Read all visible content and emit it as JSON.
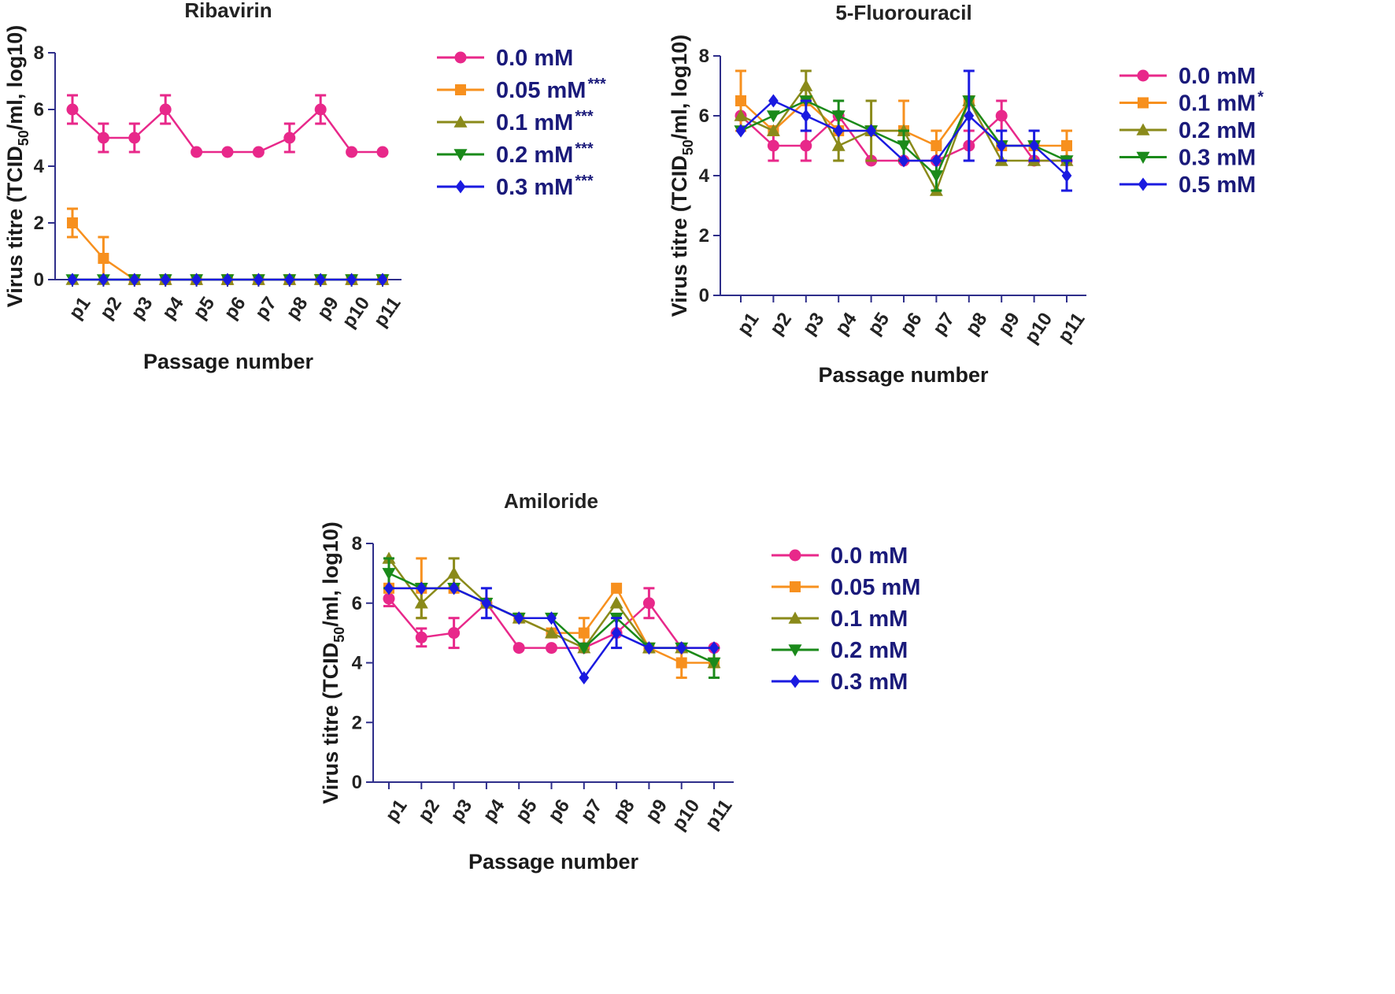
{
  "chart_data": [
    {
      "type": "line",
      "title": "Ribavirin",
      "xlabel": "Passage number",
      "ylabel": "Virus titre (TCID50/ml, log10)",
      "ylabel_parts": {
        "pre": "Virus titre (TCID",
        "sub": "50",
        "post": "/ml, log10)"
      },
      "ylim": [
        0,
        8
      ],
      "yticks": [
        "0",
        "2",
        "4",
        "6",
        "8"
      ],
      "categories": [
        "p1",
        "p2",
        "p3",
        "p4",
        "p5",
        "p6",
        "p7",
        "p8",
        "p9",
        "p10",
        "p11"
      ],
      "series": [
        {
          "name": "0.0 mM",
          "sig": "",
          "color": "#e8288a",
          "marker": "circle",
          "values": [
            6,
            5,
            5,
            6,
            4.5,
            4.5,
            4.5,
            5,
            6,
            4.5,
            4.5
          ],
          "errors": [
            0.5,
            0.5,
            0.5,
            0.5,
            0,
            0,
            0,
            0.5,
            0.5,
            0,
            0
          ]
        },
        {
          "name": "0.05 mM",
          "sig": "***",
          "color": "#f7901e",
          "marker": "square",
          "values": [
            2,
            0.75,
            0,
            0,
            0,
            0,
            0,
            0,
            0,
            0,
            0
          ],
          "errors": [
            0.5,
            0.75,
            0,
            0,
            0,
            0,
            0,
            0,
            0,
            0,
            0
          ]
        },
        {
          "name": "0.1 mM",
          "sig": "***",
          "color": "#8a8a1a",
          "marker": "triangle-up",
          "values": [
            0,
            0,
            0,
            0,
            0,
            0,
            0,
            0,
            0,
            0,
            0
          ],
          "errors": [
            0,
            0,
            0,
            0,
            0,
            0,
            0,
            0,
            0,
            0,
            0
          ]
        },
        {
          "name": "0.2 mM",
          "sig": "***",
          "color": "#1a8a1a",
          "marker": "triangle-down",
          "values": [
            0,
            0,
            0,
            0,
            0,
            0,
            0,
            0,
            0,
            0,
            0
          ],
          "errors": [
            0,
            0,
            0,
            0,
            0,
            0,
            0,
            0,
            0,
            0,
            0
          ]
        },
        {
          "name": "0.3 mM",
          "sig": "***",
          "color": "#1a1ae0",
          "marker": "diamond",
          "values": [
            0,
            0,
            0,
            0,
            0,
            0,
            0,
            0,
            0,
            0,
            0
          ],
          "errors": [
            0,
            0,
            0,
            0,
            0,
            0,
            0,
            0,
            0,
            0,
            0
          ]
        }
      ]
    },
    {
      "type": "line",
      "title": "5-Fluorouracil",
      "xlabel": "Passage number",
      "ylabel": "Virus titre (TCID50/ml, log10)",
      "ylabel_parts": {
        "pre": "Virus titre (TCID",
        "sub": "50",
        "post": "/ml, log10)"
      },
      "ylim": [
        0,
        8
      ],
      "yticks": [
        "0",
        "2",
        "4",
        "6",
        "8"
      ],
      "categories": [
        "p1",
        "p2",
        "p3",
        "p4",
        "p5",
        "p6",
        "p7",
        "p8",
        "p9",
        "p10",
        "p11"
      ],
      "series": [
        {
          "name": "0.0 mM",
          "sig": "",
          "color": "#e8288a",
          "marker": "circle",
          "values": [
            6,
            5,
            5,
            6,
            4.5,
            4.5,
            4.5,
            5,
            6,
            4.5,
            4.5
          ],
          "errors": [
            0,
            0.5,
            0.5,
            0,
            0,
            0,
            0,
            0.5,
            0.5,
            0,
            0
          ]
        },
        {
          "name": "0.1 mM",
          "sig": "*",
          "color": "#f7901e",
          "marker": "square",
          "values": [
            6.5,
            5.5,
            6.5,
            5.5,
            5.5,
            5.5,
            5,
            6.5,
            5,
            5,
            5
          ],
          "errors": [
            1,
            0,
            0,
            0,
            0,
            1,
            0.5,
            0,
            0,
            0,
            0.5
          ]
        },
        {
          "name": "0.2 mM",
          "sig": "",
          "color": "#8a8a1a",
          "marker": "triangle-up",
          "values": [
            6,
            5.5,
            7,
            5,
            5.5,
            5.5,
            3.5,
            6.5,
            4.5,
            4.5,
            4.5
          ],
          "errors": [
            0,
            0,
            0.5,
            0.5,
            1,
            0,
            0,
            0,
            0,
            0,
            0
          ]
        },
        {
          "name": "0.3 mM",
          "sig": "",
          "color": "#1a8a1a",
          "marker": "triangle-down",
          "values": [
            5.5,
            6,
            6.5,
            6,
            5.5,
            5,
            4,
            6.5,
            5,
            5,
            4.5
          ],
          "errors": [
            0,
            0,
            0,
            0.5,
            0,
            0.5,
            0.5,
            0,
            0,
            0,
            0
          ]
        },
        {
          "name": "0.5 mM",
          "sig": "",
          "color": "#1a1ae0",
          "marker": "diamond",
          "values": [
            5.5,
            6.5,
            6,
            5.5,
            5.5,
            4.5,
            4.5,
            6,
            5,
            5,
            4
          ],
          "errors": [
            0,
            0,
            0.5,
            0,
            0,
            0,
            0,
            1.5,
            0.5,
            0.5,
            0.5
          ]
        }
      ]
    },
    {
      "type": "line",
      "title": "Amiloride",
      "xlabel": "Passage number",
      "ylabel": "Virus titre (TCID50/ml, log10)",
      "ylabel_parts": {
        "pre": "Virus titre (TCID",
        "sub": "50",
        "post": "/ml, log10)"
      },
      "ylim": [
        0,
        8
      ],
      "yticks": [
        "0",
        "2",
        "4",
        "6",
        "8"
      ],
      "categories": [
        "p1",
        "p2",
        "p3",
        "p4",
        "p5",
        "p6",
        "p7",
        "p8",
        "p9",
        "p10",
        "p11"
      ],
      "series": [
        {
          "name": "0.0 mM",
          "sig": "",
          "color": "#e8288a",
          "marker": "circle",
          "values": [
            6.15,
            4.85,
            5,
            6,
            4.5,
            4.5,
            4.5,
            5,
            6,
            4.5,
            4.5
          ],
          "errors": [
            0.25,
            0.3,
            0.5,
            0,
            0,
            0,
            0,
            0,
            0.5,
            0,
            0
          ]
        },
        {
          "name": "0.05 mM",
          "sig": "",
          "color": "#f7901e",
          "marker": "square",
          "values": [
            6.5,
            6.5,
            6.5,
            6,
            5.5,
            5,
            5,
            6.5,
            4.5,
            4,
            4
          ],
          "errors": [
            0,
            1,
            0,
            0,
            0,
            0,
            0.5,
            0,
            0,
            0.5,
            0
          ]
        },
        {
          "name": "0.1 mM",
          "sig": "",
          "color": "#8a8a1a",
          "marker": "triangle-up",
          "values": [
            7.5,
            6,
            7,
            6,
            5.5,
            5,
            4.5,
            6,
            4.5,
            4.5,
            4
          ],
          "errors": [
            0,
            0.5,
            0.5,
            0,
            0,
            0,
            0,
            0,
            0,
            0,
            0
          ]
        },
        {
          "name": "0.2 mM",
          "sig": "",
          "color": "#1a8a1a",
          "marker": "triangle-down",
          "values": [
            7,
            6.5,
            6.5,
            6,
            5.5,
            5.5,
            4.5,
            5.5,
            4.5,
            4.5,
            4
          ],
          "errors": [
            0.5,
            0,
            0,
            0,
            0,
            0,
            0,
            0,
            0,
            0,
            0.5
          ]
        },
        {
          "name": "0.3 mM",
          "sig": "",
          "color": "#1a1ae0",
          "marker": "diamond",
          "values": [
            6.5,
            6.5,
            6.5,
            6,
            5.5,
            5.5,
            3.5,
            5,
            4.5,
            4.5,
            4.5
          ],
          "errors": [
            0,
            0,
            0,
            0.5,
            0,
            0,
            0,
            0.5,
            0,
            0,
            0
          ]
        }
      ]
    }
  ]
}
